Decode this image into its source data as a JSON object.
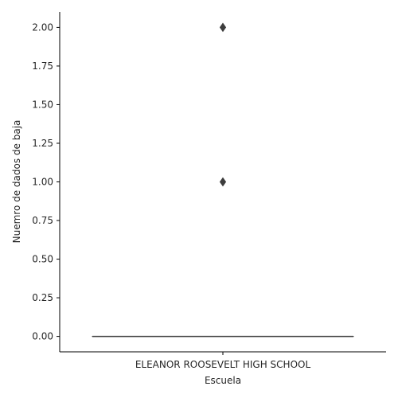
{
  "chart_data": {
    "type": "box",
    "categories": [
      "ELEANOR ROOSEVELT HIGH SCHOOL"
    ],
    "xlabel": "Escuela",
    "ylabel": "Nuemro de dados de baja",
    "ylim": [
      -0.1,
      2.1
    ],
    "yticks": [
      "0.00",
      "0.25",
      "0.50",
      "0.75",
      "1.00",
      "1.25",
      "1.50",
      "1.75",
      "2.00"
    ],
    "boxes": [
      {
        "category": "ELEANOR ROOSEVELT HIGH SCHOOL",
        "q1": 0,
        "median": 0,
        "q3": 0,
        "whisker_low": 0,
        "whisker_high": 0,
        "outliers": [
          1,
          2
        ]
      }
    ],
    "grid": false,
    "colors": {
      "box": "#3d3d3d",
      "axis": "#000000"
    }
  }
}
